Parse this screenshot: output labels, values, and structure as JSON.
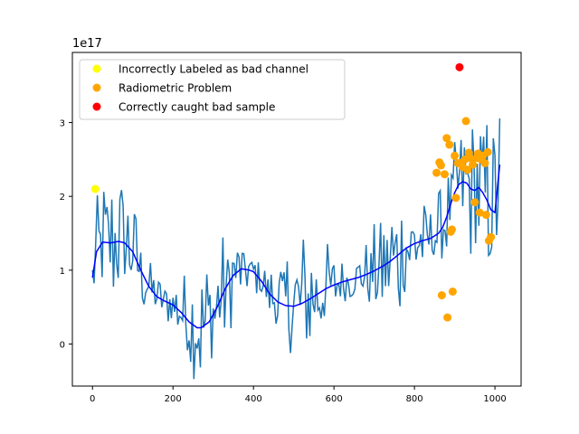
{
  "chart_data": {
    "type": "line",
    "title": "",
    "xlabel": "",
    "ylabel": "",
    "y_scale_label": "1e17",
    "xlim": [
      -50,
      1065
    ],
    "ylim": [
      -0.57,
      3.95
    ],
    "x_ticks": [
      0,
      200,
      400,
      600,
      800,
      1000
    ],
    "x_tick_labels": [
      "0",
      "200",
      "400",
      "600",
      "800",
      "1000"
    ],
    "y_ticks": [
      0,
      1,
      2,
      3
    ],
    "y_tick_labels": [
      "0",
      "1",
      "2",
      "3"
    ],
    "grid": false,
    "legend_position": "upper-left",
    "series": [
      {
        "kind": "noisy-signal",
        "color": "#1f77b4",
        "note_values": "sampled data approximated",
        "x_range": [
          0,
          1012
        ]
      },
      {
        "kind": "smooth-trend",
        "color": "#0000ff",
        "x": [
          0,
          10,
          25,
          45,
          65,
          80,
          100,
          120,
          140,
          160,
          180,
          200,
          220,
          240,
          260,
          270,
          290,
          310,
          330,
          350,
          370,
          390,
          400,
          420,
          440,
          460,
          480,
          500,
          520,
          540,
          560,
          580,
          600,
          620,
          640,
          660,
          680,
          700,
          720,
          740,
          760,
          780,
          800,
          820,
          840,
          860,
          870,
          880,
          890,
          900,
          910,
          920,
          930,
          940,
          950,
          960,
          970,
          980,
          990,
          1000,
          1012
        ],
        "y": [
          0.9,
          1.25,
          1.38,
          1.37,
          1.39,
          1.37,
          1.25,
          1.0,
          0.78,
          0.64,
          0.58,
          0.53,
          0.43,
          0.3,
          0.22,
          0.22,
          0.3,
          0.5,
          0.75,
          0.93,
          1.02,
          1.0,
          0.98,
          0.85,
          0.68,
          0.57,
          0.52,
          0.51,
          0.55,
          0.61,
          0.68,
          0.75,
          0.8,
          0.84,
          0.87,
          0.9,
          0.94,
          0.99,
          1.05,
          1.12,
          1.21,
          1.3,
          1.36,
          1.4,
          1.43,
          1.5,
          1.58,
          1.72,
          1.9,
          2.05,
          2.16,
          2.2,
          2.18,
          2.1,
          2.08,
          2.12,
          2.05,
          1.95,
          1.82,
          1.78,
          2.43
        ]
      }
    ],
    "scatter_groups": [
      {
        "name": "Incorrectly Labeled as bad channel",
        "color": "#ffff00",
        "points": [
          [
            7,
            2.1
          ]
        ]
      },
      {
        "name": "Radiometric Problem",
        "color": "#ffa500",
        "points": [
          [
            855,
            2.32
          ],
          [
            862,
            2.46
          ],
          [
            866,
            2.42
          ],
          [
            868,
            0.66
          ],
          [
            875,
            2.3
          ],
          [
            880,
            2.79
          ],
          [
            882,
            0.36
          ],
          [
            887,
            2.7
          ],
          [
            890,
            1.52
          ],
          [
            893,
            1.55
          ],
          [
            895,
            0.71
          ],
          [
            900,
            2.55
          ],
          [
            903,
            1.98
          ],
          [
            908,
            2.45
          ],
          [
            915,
            2.45
          ],
          [
            920,
            2.4
          ],
          [
            925,
            2.5
          ],
          [
            928,
            3.02
          ],
          [
            932,
            2.36
          ],
          [
            935,
            2.59
          ],
          [
            938,
            2.52
          ],
          [
            945,
            2.43
          ],
          [
            950,
            1.92
          ],
          [
            955,
            2.52
          ],
          [
            958,
            2.58
          ],
          [
            962,
            1.78
          ],
          [
            966,
            2.5
          ],
          [
            970,
            2.55
          ],
          [
            975,
            2.45
          ],
          [
            978,
            1.75
          ],
          [
            982,
            2.6
          ],
          [
            985,
            1.4
          ],
          [
            990,
            1.45
          ]
        ]
      },
      {
        "name": "Correctly caught bad sample",
        "color": "#ff0000",
        "points": [
          [
            912,
            3.75
          ]
        ]
      }
    ]
  }
}
